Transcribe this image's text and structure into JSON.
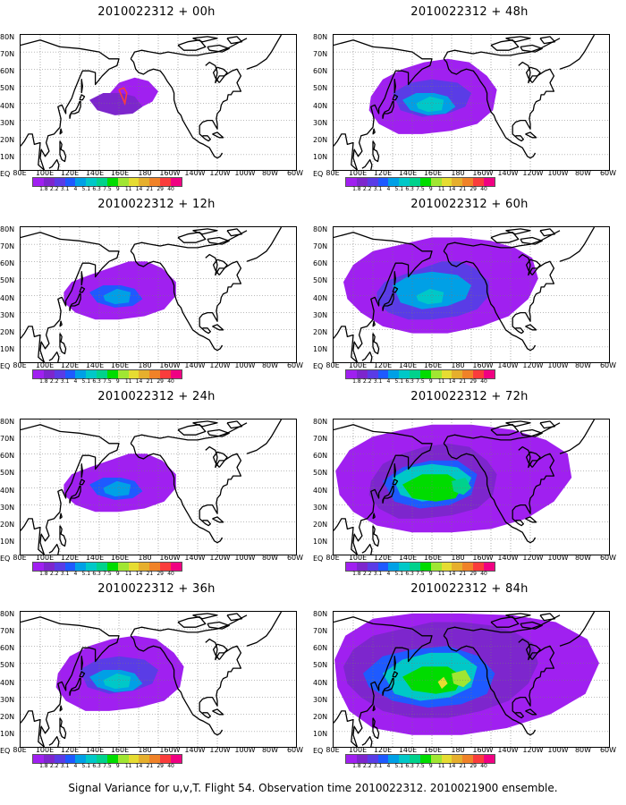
{
  "caption": "Signal Variance for u,v,T. Flight 54. Observation time 2010022312. 2010021900 ensemble.",
  "panels": [
    {
      "title": "2010022312 + 00h",
      "level": 0
    },
    {
      "title": "2010022312 + 48h",
      "level": 2
    },
    {
      "title": "2010022312 + 12h",
      "level": 1
    },
    {
      "title": "2010022312 + 60h",
      "level": 3
    },
    {
      "title": "2010022312 + 24h",
      "level": 1
    },
    {
      "title": "2010022312 + 72h",
      "level": 4
    },
    {
      "title": "2010022312 + 36h",
      "level": 2
    },
    {
      "title": "2010022312 + 84h",
      "level": 5
    }
  ],
  "y_labels": [
    "80N",
    "70N",
    "60N",
    "50N",
    "40N",
    "30N",
    "20N",
    "10N",
    "EQ"
  ],
  "x_labels": [
    "80E",
    "100E",
    "120E",
    "140E",
    "160E",
    "180",
    "160W",
    "140W",
    "120W",
    "100W",
    "80W",
    "60W"
  ],
  "colorbar_labels": [
    "1.8",
    "2.2",
    "3.1",
    "4",
    "5.1",
    "6.3",
    "7.5",
    "9",
    "11",
    "14",
    "21",
    "29",
    "40"
  ],
  "colorbar_colors": [
    "#a020f0",
    "#7d26cd",
    "#5a3ce6",
    "#1e5aff",
    "#00a0e6",
    "#00c8c8",
    "#00d28c",
    "#00dc00",
    "#a0e632",
    "#e6dc32",
    "#e6af2d",
    "#f08228",
    "#fa3c3c",
    "#f00082"
  ]
}
